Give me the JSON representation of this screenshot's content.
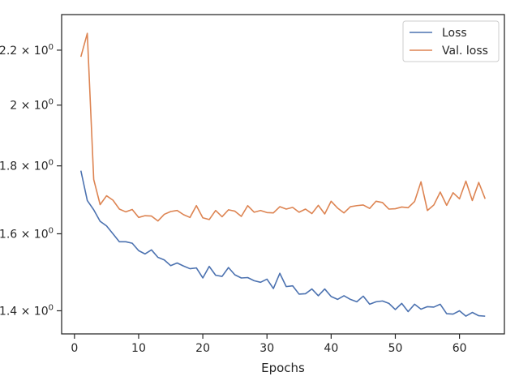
{
  "chart_data": {
    "type": "line",
    "title": "",
    "xlabel": "Epochs",
    "ylabel": "",
    "xlim": [
      -2,
      67
    ],
    "ylim": [
      1.345,
      2.34
    ],
    "yscale": "log",
    "grid": false,
    "legend_position": "top-right",
    "x_ticks": [
      0,
      10,
      20,
      30,
      40,
      50,
      60
    ],
    "x_tick_labels": [
      "0",
      "10",
      "20",
      "30",
      "40",
      "50",
      "60"
    ],
    "y_ticks": [
      1.4,
      1.6,
      1.8,
      2.0,
      2.2
    ],
    "y_tick_labels": [
      {
        "base": "1.4",
        "sep": " × 10",
        "exp": "0"
      },
      {
        "base": "1.6",
        "sep": " × 10",
        "exp": "0"
      },
      {
        "base": "1.8",
        "sep": " × 10",
        "exp": "0"
      },
      {
        "base": "2",
        "sep": " × 10",
        "exp": "0"
      },
      {
        "base": "2.2",
        "sep": " × 10",
        "exp": "0"
      }
    ],
    "x": [
      1,
      2,
      3,
      4,
      5,
      6,
      7,
      8,
      9,
      10,
      11,
      12,
      13,
      14,
      15,
      16,
      17,
      18,
      19,
      20,
      21,
      22,
      23,
      24,
      25,
      26,
      27,
      28,
      29,
      30,
      31,
      32,
      33,
      34,
      35,
      36,
      37,
      38,
      39,
      40,
      41,
      42,
      43,
      44,
      45,
      46,
      47,
      48,
      49,
      50,
      51,
      52,
      53,
      54,
      55,
      56,
      57,
      58,
      59,
      60,
      61,
      62,
      63,
      64
    ],
    "series": [
      {
        "name": "Loss",
        "color": "#4c72b0",
        "values": [
          1.785,
          1.695,
          1.668,
          1.635,
          1.622,
          1.6,
          1.578,
          1.578,
          1.574,
          1.554,
          1.545,
          1.556,
          1.536,
          1.529,
          1.514,
          1.521,
          1.513,
          1.506,
          1.508,
          1.482,
          1.512,
          1.489,
          1.486,
          1.509,
          1.49,
          1.482,
          1.483,
          1.475,
          1.471,
          1.479,
          1.455,
          1.494,
          1.46,
          1.462,
          1.441,
          1.442,
          1.454,
          1.437,
          1.454,
          1.435,
          1.428,
          1.437,
          1.428,
          1.422,
          1.436,
          1.416,
          1.422,
          1.424,
          1.418,
          1.403,
          1.418,
          1.398,
          1.416,
          1.404,
          1.41,
          1.409,
          1.416,
          1.393,
          1.392,
          1.4,
          1.387,
          1.396,
          1.388,
          1.387
        ]
      },
      {
        "name": "Val. loss",
        "color": "#dd8452",
        "values": [
          2.175,
          2.265,
          1.758,
          1.683,
          1.709,
          1.696,
          1.67,
          1.662,
          1.669,
          1.646,
          1.651,
          1.65,
          1.636,
          1.655,
          1.663,
          1.666,
          1.654,
          1.646,
          1.68,
          1.645,
          1.64,
          1.666,
          1.648,
          1.668,
          1.664,
          1.649,
          1.68,
          1.661,
          1.666,
          1.66,
          1.659,
          1.677,
          1.67,
          1.675,
          1.661,
          1.67,
          1.657,
          1.681,
          1.656,
          1.693,
          1.673,
          1.659,
          1.677,
          1.68,
          1.682,
          1.672,
          1.693,
          1.689,
          1.67,
          1.671,
          1.676,
          1.674,
          1.692,
          1.751,
          1.666,
          1.682,
          1.72,
          1.681,
          1.718,
          1.7,
          1.753,
          1.695,
          1.749,
          1.7
        ]
      }
    ]
  }
}
